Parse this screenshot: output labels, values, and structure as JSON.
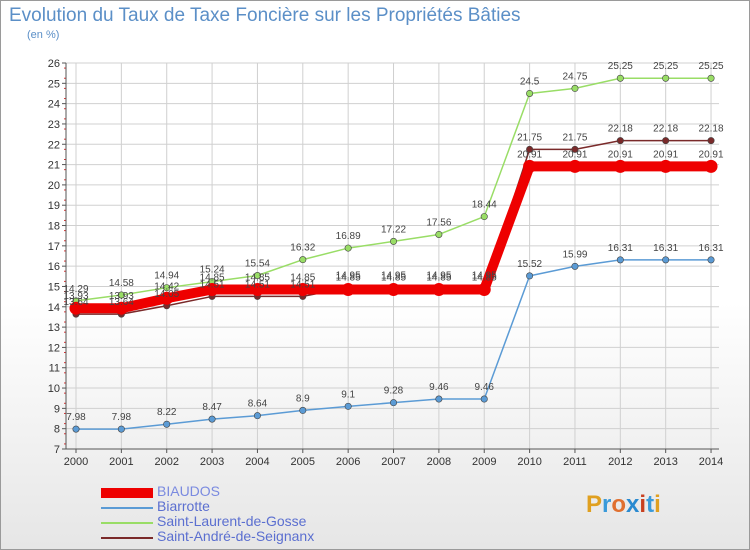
{
  "title": "Evolution du Taux de Taxe Foncière sur les Propriétés Bâties",
  "subtitle": "(en %)",
  "logo": {
    "text": "Proxiti",
    "letters": [
      "P",
      "r",
      "o",
      "x",
      "i",
      "t",
      "i"
    ],
    "colors": [
      "#e0a020",
      "#3a9ad9",
      "#e07030",
      "#2a8ad0",
      "#c84020",
      "#3a9ad9",
      "#e0a020"
    ]
  },
  "chart_data": {
    "type": "line",
    "title": "Evolution du Taux de Taxe Foncière sur les Propriétés Bâties",
    "ylabel": "(en %)",
    "ylim": [
      7,
      26
    ],
    "x": [
      "2000",
      "2001",
      "2002",
      "2003",
      "2004",
      "2005",
      "2006",
      "2007",
      "2008",
      "2009",
      "2010",
      "2011",
      "2012",
      "2013",
      "2014"
    ],
    "yticks": [
      7,
      8,
      9,
      10,
      11,
      12,
      13,
      14,
      15,
      16,
      17,
      18,
      19,
      20,
      21,
      22,
      23,
      24,
      25,
      26
    ],
    "series": [
      {
        "name": "BIAUDOS",
        "color": "#ee0000",
        "width": 10,
        "values": [
          13.93,
          13.93,
          14.42,
          14.85,
          14.85,
          14.85,
          14.85,
          14.85,
          14.85,
          14.85,
          20.91,
          20.91,
          20.91,
          20.91,
          20.91
        ],
        "labels": [
          "13.93",
          "13.93",
          "14.42",
          "14.85",
          "14.85",
          "14.85",
          "14.85",
          "14.85",
          "14.85",
          "14.85",
          "20.91",
          "20.91",
          "20.91",
          "20.91",
          "20.91"
        ]
      },
      {
        "name": "Biarrotte",
        "color": "#5b9bd5",
        "width": 1.5,
        "values": [
          7.98,
          7.98,
          8.22,
          8.47,
          8.64,
          8.9,
          9.1,
          9.28,
          9.46,
          9.46,
          15.52,
          15.99,
          16.31,
          16.31,
          16.31
        ],
        "labels": [
          "7.98",
          "7.98",
          "8.22",
          "8.47",
          "8.64",
          "8.9",
          "9.1",
          "9.28",
          "9.46",
          "9.46",
          "15.52",
          "15.99",
          "16.31",
          "16.31",
          "16.31"
        ]
      },
      {
        "name": "Saint-Laurent-de-Gosse",
        "color": "#99dd66",
        "width": 1.5,
        "values": [
          14.29,
          14.58,
          14.94,
          15.24,
          15.54,
          16.32,
          16.89,
          17.22,
          17.56,
          18.44,
          24.5,
          24.75,
          25.25,
          25.25,
          25.25
        ],
        "labels": [
          "14.29",
          "14.58",
          "14.94",
          "15.24",
          "15.54",
          "16.32",
          "16.89",
          "17.22",
          "17.56",
          "18.44",
          "24.5",
          "24.75",
          "25.25",
          "25.25",
          "25.25"
        ]
      },
      {
        "name": "Saint-André-de-Seignanx",
        "color": "#7a2a2a",
        "width": 1.5,
        "values": [
          13.64,
          13.64,
          14.05,
          14.51,
          14.51,
          14.51,
          14.95,
          14.95,
          14.95,
          14.95,
          21.75,
          21.75,
          22.18,
          22.18,
          22.18
        ],
        "labels": [
          "13.64",
          "13.64",
          "14.05",
          "14.51",
          "14.51",
          "14.51",
          "14.95",
          "14.95",
          "14.95",
          "14.95",
          "21.75",
          "21.75",
          "22.18",
          "22.18",
          "22.18"
        ]
      }
    ],
    "legend_position": "bottom-left"
  }
}
